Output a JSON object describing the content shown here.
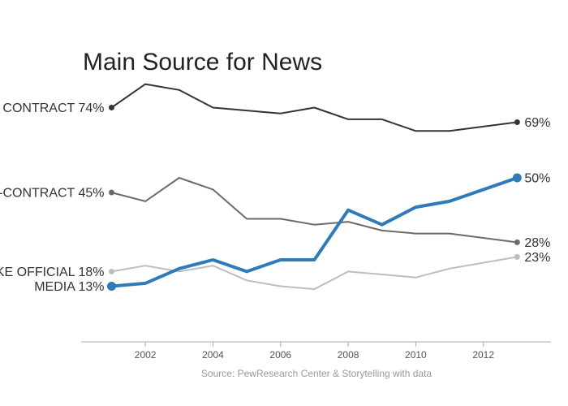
{
  "chart_data": {
    "type": "line",
    "title": "Main Source for News",
    "source": "Source: PewResearch Center & Storytelling with data",
    "x": [
      2001,
      2002,
      2003,
      2004,
      2005,
      2006,
      2007,
      2008,
      2009,
      2010,
      2011,
      2013
    ],
    "xticks": [
      2002,
      2004,
      2006,
      2008,
      2010,
      2012
    ],
    "xtick_labels": [
      "2002",
      "2004",
      "2006",
      "2008",
      "2010",
      "2012"
    ],
    "xlim": [
      2000.1,
      2014
    ],
    "ylim": [
      -6,
      83
    ],
    "grid": false,
    "series": [
      {
        "label_text": "CONTRACT 74%",
        "end_label_text": "69%",
        "color": "#333333",
        "values": [
          74,
          82,
          80,
          74,
          73,
          72,
          74,
          70,
          70,
          66,
          66,
          69
        ]
      },
      {
        "label_text": "-CONTRACT 45%",
        "end_label_text": "28%",
        "color": "#6b6b6b",
        "values": [
          45,
          42,
          50,
          46,
          36,
          36,
          34,
          35,
          32,
          31,
          31,
          28
        ]
      },
      {
        "label_text": "KE OFFICIAL 18%",
        "end_label_text": "23%",
        "color": "#bdbdbd",
        "values": [
          18,
          20,
          18,
          20,
          15,
          13,
          12,
          18,
          17,
          16,
          19,
          23
        ]
      },
      {
        "label_text": "MEDIA 13%",
        "end_label_text": "50%",
        "color": "#2f7ab8",
        "highlight": true,
        "values": [
          13,
          14,
          19,
          22,
          18,
          22,
          22,
          39,
          34,
          40,
          42,
          50
        ]
      }
    ]
  }
}
